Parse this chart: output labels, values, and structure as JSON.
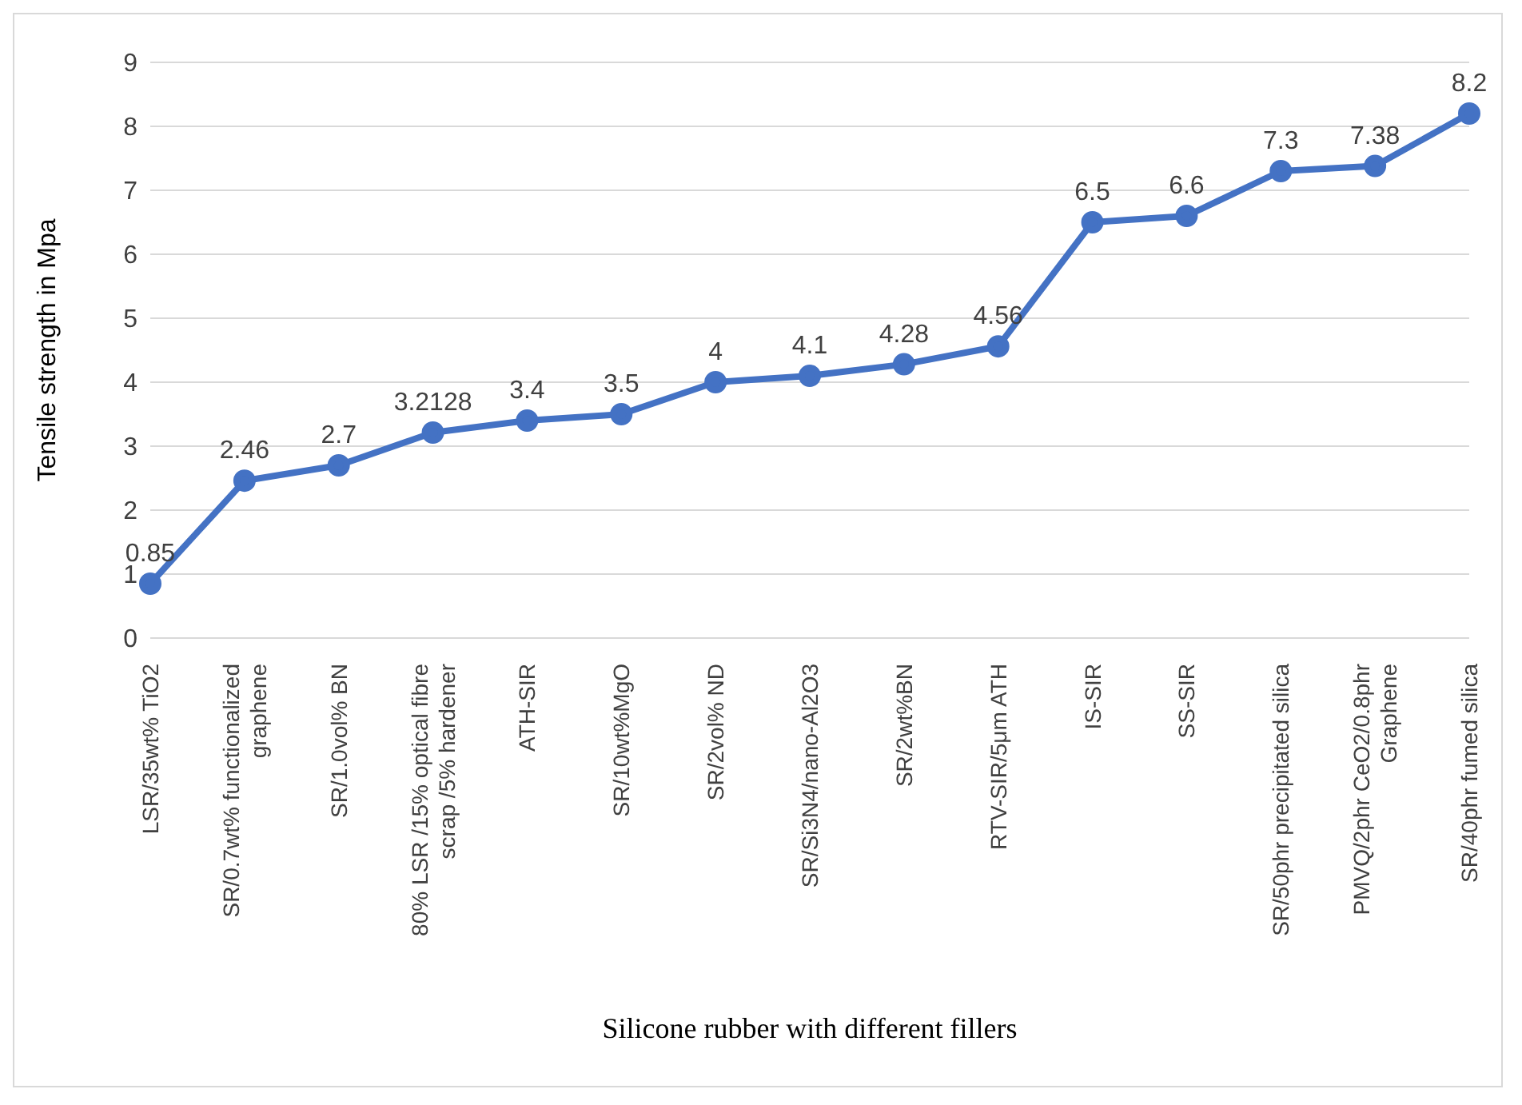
{
  "chart_data": {
    "type": "line",
    "xlabel": "Silicone rubber with different fillers",
    "ylabel": "Tensile strength in Mpa",
    "categories": [
      "LSR/35wt% TiO2",
      "SR/0.7wt% functionalized graphene",
      "SR/1.0vol% BN",
      "80% LSR /15% optical fibre scrap /5% hardener",
      "ATH-SIR",
      "SR/10wt%MgO",
      "SR/2vol% ND",
      "SR/Si3N4/nano-Al2O3",
      "SR/2wt%BN",
      "RTV-SIR/5μm ATH",
      "IS-SIR",
      "SS-SIR",
      "SR/50phr precipitated silica",
      "PMVQ/2phr CeO2/0.8phr Graphene",
      "SR/40phr fumed silica"
    ],
    "series": [
      {
        "color": "#4472c4",
        "values": [
          0.85,
          2.46,
          2.7,
          3.2128,
          3.4,
          3.5,
          4,
          4.1,
          4.28,
          4.56,
          6.5,
          6.6,
          7.3,
          7.38,
          8.2
        ]
      }
    ],
    "ylim": [
      0,
      9
    ],
    "yticks": [
      0,
      1,
      2,
      3,
      4,
      5,
      6,
      7,
      8,
      9
    ],
    "grid": "y",
    "marker": "circle",
    "line_style": "solid",
    "data_labels": true
  }
}
